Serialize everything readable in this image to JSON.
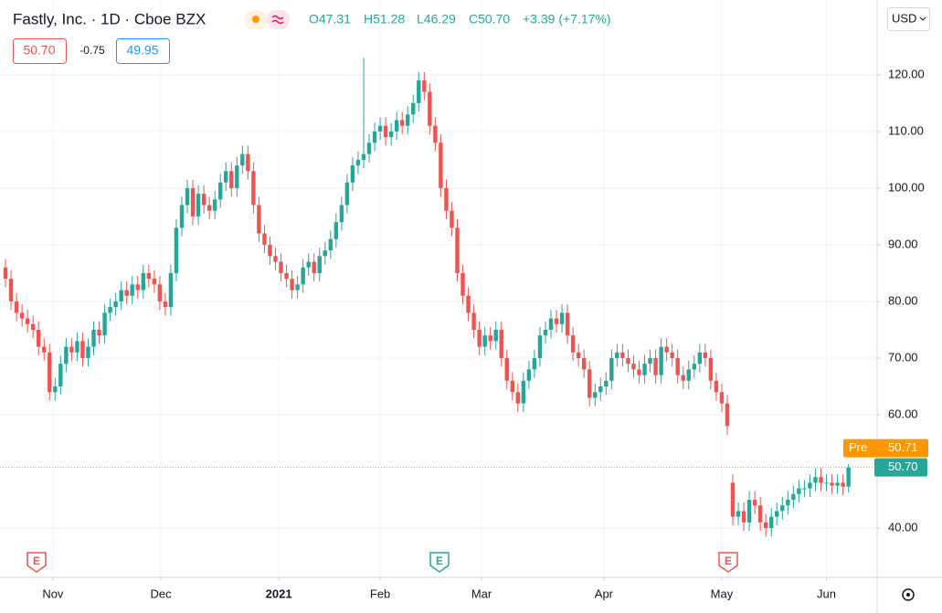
{
  "chart_data": {
    "type": "candlestick",
    "title": "Fastly, Inc. · 1D · Cboe BZX",
    "ohlc": [
      "O47.31",
      "H51.28",
      "L46.29",
      "C50.70"
    ],
    "change": "+3.39 (+7.17%)",
    "boxes": [
      "50.70",
      "-0.75",
      "49.95"
    ],
    "currency": "USD",
    "up_color": "#26a69a",
    "down_color": "#ef5350",
    "grid": true,
    "open": [
      86,
      84,
      80,
      78,
      77,
      76,
      75,
      72,
      71,
      64,
      65,
      69,
      72,
      71,
      73,
      70,
      72,
      75,
      74,
      78,
      79,
      80,
      82,
      81,
      83,
      82,
      85,
      84,
      83,
      80,
      79,
      85,
      93,
      97,
      100,
      95,
      99,
      97,
      96,
      98,
      101,
      103,
      100,
      104,
      106,
      103,
      97,
      92,
      90,
      88,
      87,
      85,
      84,
      82,
      83,
      86,
      87,
      85,
      88,
      89,
      91,
      94,
      97,
      101,
      104,
      105,
      106,
      108,
      110,
      111,
      109,
      110,
      112,
      111,
      113,
      115,
      119,
      117,
      111,
      108,
      100,
      96,
      93,
      85,
      81,
      78,
      75,
      72,
      74,
      73,
      75,
      70,
      66,
      64,
      62,
      66,
      68,
      70,
      74,
      75,
      77,
      76,
      78,
      74,
      71,
      70,
      68,
      63,
      64,
      65,
      66,
      70,
      71,
      70,
      69,
      68,
      67,
      69,
      70,
      67,
      72,
      71,
      70,
      67,
      66,
      68,
      69,
      71,
      70,
      66,
      64,
      62,
      48,
      42,
      43,
      41,
      45,
      44,
      41,
      40,
      42,
      43,
      44,
      45,
      46,
      47,
      47,
      48,
      49,
      48,
      48,
      47.5,
      48,
      47.31
    ],
    "high": [
      87.5,
      85.5,
      81.5,
      79.5,
      78.5,
      77.5,
      76.5,
      73.5,
      72.5,
      66.5,
      70.5,
      73.5,
      73.5,
      74.5,
      74.5,
      73.5,
      76.5,
      76.5,
      79.5,
      80.5,
      81.5,
      83.5,
      83.5,
      84.5,
      84.5,
      86.5,
      86.5,
      85.5,
      84.5,
      81.5,
      86.5,
      94.5,
      98.5,
      101.5,
      101.5,
      100.5,
      100.5,
      98.5,
      99.5,
      102.5,
      104.5,
      104.5,
      105.5,
      107.5,
      107.5,
      104.5,
      98.5,
      93.5,
      91.5,
      89.5,
      88.5,
      86.5,
      85.5,
      84.5,
      87.5,
      88.5,
      88.5,
      89.5,
      90.5,
      92.5,
      95.5,
      98.5,
      102.5,
      105.5,
      106.5,
      123,
      109.5,
      111.5,
      112.5,
      112.5,
      111.5,
      113.5,
      113.5,
      114.5,
      116.5,
      120.5,
      120.5,
      118.5,
      112.5,
      109.5,
      101.5,
      97.5,
      94.5,
      86.5,
      82.5,
      79.5,
      76.5,
      75.5,
      75.5,
      76.5,
      76.5,
      71.5,
      67.5,
      65.5,
      67.5,
      69.5,
      71.5,
      75.5,
      76.5,
      78.5,
      78.5,
      79.5,
      79.5,
      75.5,
      72.5,
      71.5,
      69.5,
      65.5,
      66.5,
      67.5,
      71.5,
      72.5,
      72.5,
      71.5,
      70.5,
      69.5,
      70.5,
      71.5,
      71.5,
      73.5,
      73.5,
      72.5,
      71.5,
      68.5,
      69.5,
      70.5,
      72.5,
      72.5,
      71.5,
      67.5,
      65.5,
      63.5,
      49.5,
      44.5,
      44.5,
      46.5,
      46.5,
      45.5,
      42.5,
      43.5,
      44.5,
      45.5,
      46.5,
      47.5,
      48.5,
      48.5,
      49.5,
      50.5,
      50.5,
      49.5,
      49.5,
      49.5,
      49.5,
      51.28
    ],
    "low": [
      82.5,
      78.5,
      76.5,
      75.5,
      74.5,
      73.5,
      70.5,
      69.5,
      62.5,
      62.5,
      63.5,
      67.5,
      69.5,
      69.5,
      68.5,
      68.5,
      70.5,
      72.5,
      72.5,
      76.5,
      77.5,
      78.5,
      79.5,
      79.5,
      80.5,
      80.5,
      82.5,
      81.5,
      78.5,
      77.5,
      77.5,
      83.5,
      91.5,
      95.5,
      93.5,
      93.5,
      95.5,
      94.5,
      94.5,
      96.5,
      99.5,
      98.5,
      98.5,
      102.5,
      101.5,
      95.5,
      90.5,
      88.5,
      86.5,
      85.5,
      83.5,
      82.5,
      80.5,
      80.5,
      81.5,
      84.5,
      83.5,
      83.5,
      86.5,
      87.5,
      89.5,
      92.5,
      95.5,
      99.5,
      102.5,
      103.5,
      104.5,
      106.5,
      108.5,
      107.5,
      107.5,
      108.5,
      109.5,
      109.5,
      111.5,
      113.5,
      115.5,
      109.5,
      106.5,
      98.5,
      94.5,
      91.5,
      83.5,
      79.5,
      76.5,
      73.5,
      70.5,
      70.5,
      71.5,
      71.5,
      68.5,
      64.5,
      62.5,
      60.5,
      60.5,
      64.5,
      66.5,
      68.5,
      72.5,
      73.5,
      74.5,
      74.5,
      72.5,
      69.5,
      68.5,
      66.5,
      61.5,
      61.5,
      62.5,
      63.5,
      64.5,
      68.5,
      68.5,
      67.5,
      66.5,
      65.5,
      65.5,
      67.5,
      65.5,
      65.5,
      69.5,
      68.5,
      65.5,
      64.5,
      64.5,
      66.5,
      67.5,
      68.5,
      64.5,
      62.5,
      60.5,
      56.5,
      40.5,
      40.5,
      39.5,
      39.5,
      42.5,
      39.5,
      38.5,
      38.5,
      40.5,
      41.5,
      42.5,
      43.5,
      44.5,
      45.5,
      45.5,
      46.5,
      46.5,
      46.5,
      46,
      46,
      45.81,
      46.29
    ],
    "close": [
      84,
      80,
      78,
      77,
      76,
      75,
      72,
      71,
      64,
      65,
      69,
      72,
      71,
      73,
      70,
      72,
      75,
      74,
      78,
      79,
      80,
      82,
      81,
      83,
      82,
      85,
      84,
      83,
      80,
      79,
      85,
      93,
      97,
      100,
      95,
      99,
      97,
      96,
      98,
      101,
      103,
      100,
      104,
      106,
      103,
      97,
      92,
      90,
      88,
      87,
      85,
      84,
      82,
      83,
      86,
      87,
      85,
      88,
      89,
      91,
      94,
      97,
      101,
      104,
      105,
      106,
      108,
      110,
      111,
      109,
      110,
      112,
      111,
      113,
      115,
      119,
      117,
      111,
      108,
      100,
      96,
      93,
      85,
      81,
      78,
      75,
      72,
      74,
      73,
      75,
      70,
      66,
      64,
      62,
      66,
      68,
      70,
      74,
      75,
      77,
      76,
      78,
      74,
      71,
      70,
      68,
      63,
      64,
      65,
      66,
      70,
      71,
      70,
      69,
      68,
      67,
      69,
      70,
      67,
      72,
      71,
      70,
      67,
      66,
      68,
      69,
      71,
      70,
      66,
      64,
      62,
      58,
      42,
      43,
      41,
      45,
      44,
      41,
      40,
      42,
      43,
      44,
      45,
      46,
      47,
      47,
      48,
      49,
      48,
      48,
      47.5,
      48,
      47.31,
      50.7
    ],
    "xlim": [
      -1,
      158.2
    ],
    "xticks": [
      {
        "value": 8.6,
        "label": "Nov"
      },
      {
        "value": 28.2,
        "label": "Dec"
      },
      {
        "value": 49.6,
        "label": "2021"
      },
      {
        "value": 68,
        "label": "Feb"
      },
      {
        "value": 86.4,
        "label": "Mar"
      },
      {
        "value": 108.6,
        "label": "Apr"
      },
      {
        "value": 130,
        "label": "May"
      },
      {
        "value": 149,
        "label": "Jun"
      }
    ],
    "ylim": [
      31.3,
      133.2
    ],
    "yticks": [
      {
        "value": 40,
        "label": "40.00"
      },
      {
        "value": 60,
        "label": "60.00"
      },
      {
        "value": 70,
        "label": "70.00"
      },
      {
        "value": 80,
        "label": "80.00"
      },
      {
        "value": 90,
        "label": "90.00"
      },
      {
        "value": 100,
        "label": "100.00"
      },
      {
        "value": 110,
        "label": "110.00"
      },
      {
        "value": 120,
        "label": "120.00"
      }
    ],
    "price_tag": {
      "value": 50.7,
      "label": "50.70",
      "color": "#26a69a"
    },
    "pre_tag": {
      "name": "Pre",
      "value": 50.71,
      "label": "50.71",
      "color": "#ff9800"
    },
    "events": [
      {
        "label": "E",
        "color": "#ef5350"
      },
      {
        "label": "E",
        "color": "#26a69a"
      },
      {
        "label": "E",
        "color": "#ef5350"
      }
    ]
  }
}
